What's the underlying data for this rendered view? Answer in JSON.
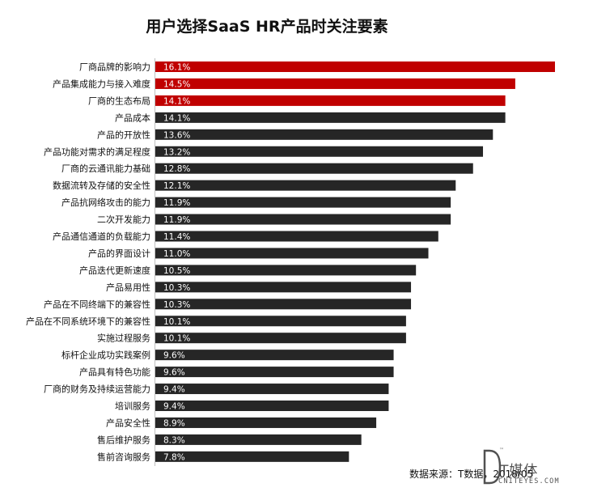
{
  "chart_data": {
    "type": "bar",
    "orientation": "horizontal",
    "title": "用户选择SaaS HR产品时关注要素",
    "categories": [
      "厂商品牌的影响力",
      "产品集成能力与接入难度",
      "厂商的生态布局",
      "产品成本",
      "产品的开放性",
      "产品功能对需求的满足程度",
      "厂商的云通讯能力基础",
      "数据流转及存储的安全性",
      "产品抗网络攻击的能力",
      "二次开发能力",
      "产品通信通道的负载能力",
      "产品的界面设计",
      "产品迭代更新速度",
      "产品易用性",
      "产品在不同终端下的兼容性",
      "产品在不同系统环境下的兼容性",
      "实施过程服务",
      "标杆企业成功实践案例",
      "产品具有特色功能",
      "厂商的财务及持续运营能力",
      "培训服务",
      "产品安全性",
      "售后维护服务",
      "售前咨询服务"
    ],
    "values": [
      16.1,
      14.5,
      14.1,
      14.1,
      13.6,
      13.2,
      12.8,
      12.1,
      11.9,
      11.9,
      11.4,
      11.0,
      10.5,
      10.3,
      10.3,
      10.1,
      10.1,
      9.6,
      9.6,
      9.4,
      9.4,
      8.9,
      8.3,
      7.8
    ],
    "value_labels": [
      "16.1%",
      "14.5%",
      "14.1%",
      "14.1%",
      "13.6%",
      "13.2%",
      "12.8%",
      "12.1%",
      "11.9%",
      "11.9%",
      "11.4%",
      "11.0%",
      "10.5%",
      "10.3%",
      "10.3%",
      "10.1%",
      "10.1%",
      "9.6%",
      "9.6%",
      "9.4%",
      "9.4%",
      "8.9%",
      "8.3%",
      "7.8%"
    ],
    "highlight_count": 3,
    "colors": {
      "highlight": "#c00000",
      "default": "#262626",
      "label_text": "#ffffff"
    },
    "xlim": [
      0,
      16.1
    ],
    "grid": false,
    "legend": "none"
  },
  "source": "数据来源：T数据，2018/05",
  "watermark": {
    "text_cn": "T媒体",
    "text_en": "CNITEYES.COM",
    "tm": "™"
  }
}
